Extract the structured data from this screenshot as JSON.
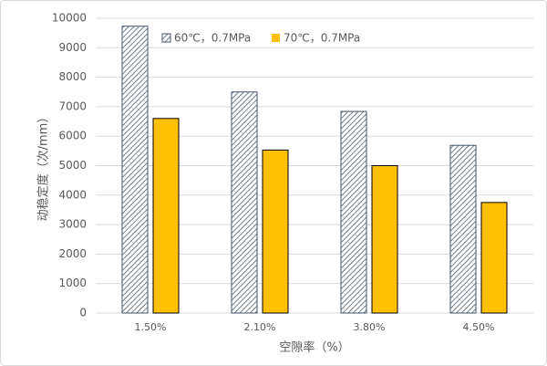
{
  "chart_data": {
    "type": "bar",
    "x_label": "空隙率（%）",
    "y_label": "动稳定度（次/mm）",
    "categories": [
      "1.50%",
      "2.10%",
      "3.80%",
      "4.50%"
    ],
    "series": [
      {
        "name": "60℃，0.7MPa",
        "color": "#44546a",
        "pattern": "hatch",
        "values": [
          9730,
          7500,
          6840,
          5690
        ]
      },
      {
        "name": "70℃，0.7MPa",
        "color": "#ffc000",
        "pattern": "solid",
        "values": [
          6600,
          5530,
          5000,
          3750
        ]
      }
    ],
    "ylim": [
      0,
      10000
    ],
    "yticks": [
      0,
      1000,
      2000,
      3000,
      4000,
      5000,
      6000,
      7000,
      8000,
      9000,
      10000
    ],
    "grid": true,
    "legend": "top"
  }
}
